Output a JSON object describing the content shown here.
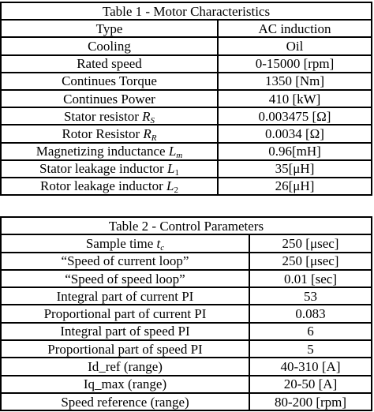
{
  "table1": {
    "caption": "Table 1 - Motor Characteristics",
    "rows": [
      {
        "label": "Type",
        "value": "AC induction"
      },
      {
        "label": "Cooling",
        "value": "Oil"
      },
      {
        "label": "Rated speed",
        "value": "0-15000 [rpm]"
      },
      {
        "label": "Continues Torque",
        "value": "1350 [Nm]"
      },
      {
        "label": "Continues Power",
        "value": "410 [kW]"
      },
      {
        "label": "Stator resistor",
        "sym": "R",
        "sub": "S",
        "value": "0.003475 [Ω]"
      },
      {
        "label": "Rotor Resistor",
        "sym": "R",
        "sub": "R",
        "value": "0.0034 [Ω]"
      },
      {
        "label": "Magnetizing inductance",
        "sym": "L",
        "sub": "m",
        "value": "0.96[mH]"
      },
      {
        "label": "Stator leakage inductor",
        "sym": "L",
        "sub": "1",
        "value": "35[μH]"
      },
      {
        "label": "Rotor leakage inductor",
        "sym": "L",
        "sub": "2",
        "value": "26[μH]"
      }
    ]
  },
  "table2": {
    "caption": "Table 2 - Control Parameters",
    "rows": [
      {
        "label": "Sample time",
        "sym": "t",
        "sub": "c",
        "value": "250 [μsec]"
      },
      {
        "label": "“Speed of current loop”",
        "value": "250 [μsec]"
      },
      {
        "label": "“Speed of speed loop”",
        "value": "0.01 [sec]"
      },
      {
        "label": "Integral part of current PI",
        "value": "53"
      },
      {
        "label": "Proportional part of current PI",
        "value": "0.083"
      },
      {
        "label": "Integral part of speed PI",
        "value": "6"
      },
      {
        "label": "Proportional part of speed PI",
        "value": "5"
      },
      {
        "label": "Id_ref (range)",
        "value": "40-310 [A]"
      },
      {
        "label": "Iq_max (range)",
        "value": "20-50 [A]"
      },
      {
        "label": "Speed reference (range)",
        "value": "80-200 [rpm]"
      }
    ]
  }
}
